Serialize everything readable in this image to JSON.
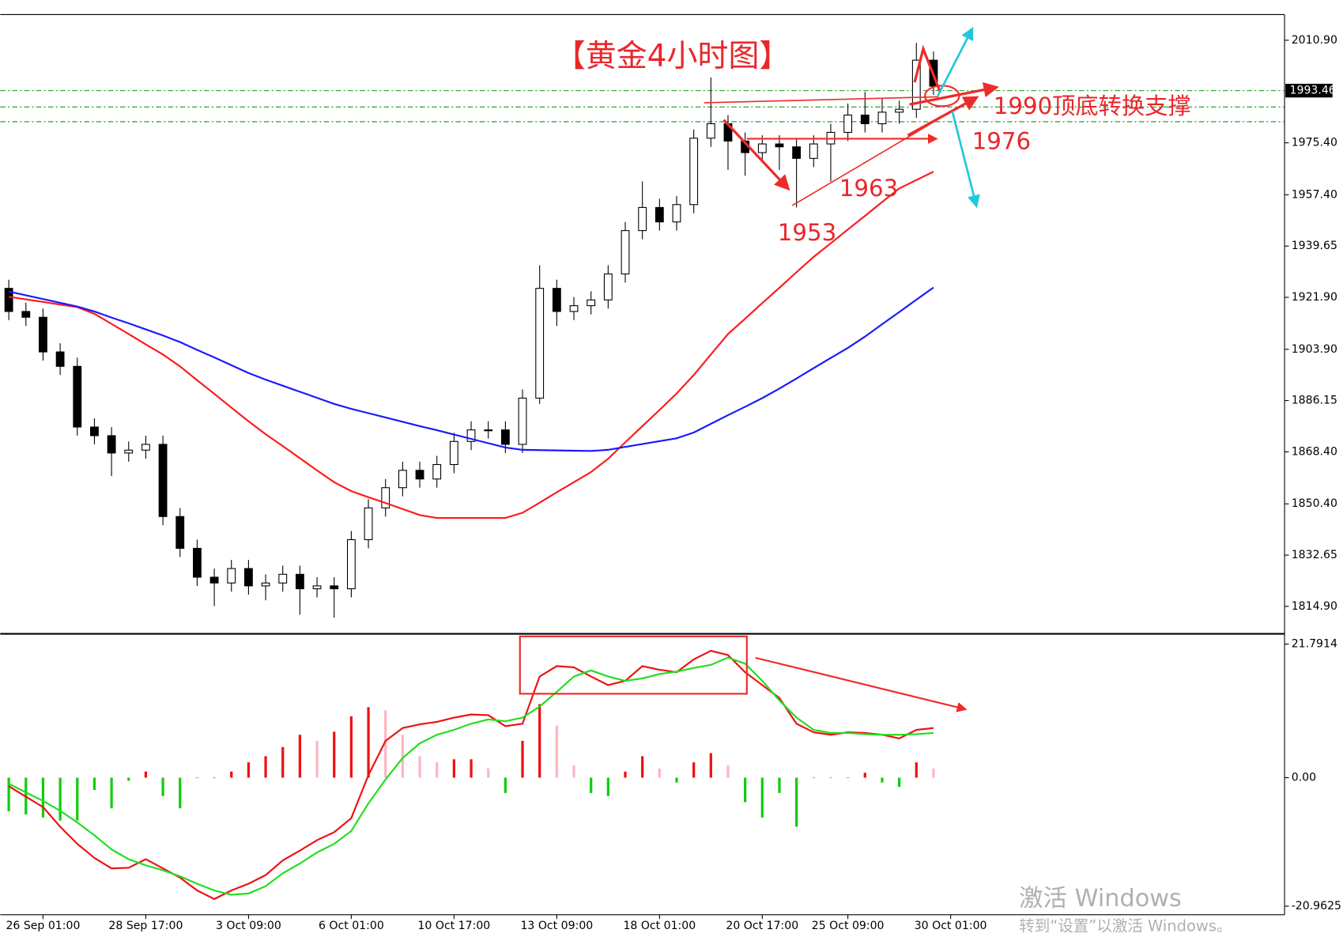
{
  "chart_data": [
    {
      "type": "candlestick",
      "title": "【黄金4小时图】",
      "annotations": [
        "1990顶底转换支撑",
        "1976",
        "1963",
        "1953"
      ],
      "categories": [
        null,
        null,
        "26 Sep 01:00",
        null,
        null,
        null,
        null,
        null,
        "28 Sep 17:00",
        null,
        null,
        null,
        null,
        null,
        "3 Oct 09:00",
        null,
        null,
        null,
        null,
        null,
        "6 Oct 01:00",
        null,
        null,
        null,
        null,
        null,
        "10 Oct 17:00",
        null,
        null,
        null,
        null,
        null,
        "13 Oct 09:00",
        null,
        null,
        null,
        null,
        null,
        "18 Oct 01:00",
        null,
        null,
        null,
        null,
        null,
        "20 Oct 17:00",
        null,
        null,
        null,
        null,
        "25 Oct 09:00",
        null,
        null,
        null,
        null,
        null,
        "30 Oct 01:00"
      ],
      "open": [
        1925,
        1917,
        1915,
        1903,
        1898,
        1877,
        1874,
        1868,
        1869,
        1871,
        1846,
        1835,
        1825,
        1823,
        1828,
        1822,
        1823,
        1826,
        1821,
        1822,
        1821,
        1838,
        1849,
        1856,
        1862,
        1859,
        1864,
        1872,
        1876,
        1876,
        1871,
        1887,
        1925,
        1917,
        1919,
        1921,
        1930,
        1945,
        1953,
        1948,
        1954,
        1977,
        1982,
        1976,
        1972,
        1975,
        1974,
        1970,
        1975,
        1979,
        1985,
        1982,
        1986,
        1987,
        2004,
        null
      ],
      "high": [
        1928,
        1920,
        1918,
        1906,
        1901,
        1880,
        1877,
        1872,
        1874,
        1874,
        1849,
        1838,
        1828,
        1831,
        1831,
        1826,
        1829,
        1829,
        1825,
        1825,
        1841,
        1852,
        1859,
        1865,
        1865,
        1867,
        1875,
        1879,
        1879,
        1879,
        1890,
        1933,
        1928,
        1922,
        1924,
        1933,
        1948,
        1962,
        1956,
        1957,
        1980,
        1998,
        1985,
        1979,
        1978,
        1978,
        1977,
        1978,
        1982,
        1989,
        1993,
        1991,
        1990,
        2010,
        2007,
        null
      ],
      "low": [
        1914,
        1912,
        1900,
        1895,
        1874,
        1871,
        1860,
        1865,
        1866,
        1843,
        1832,
        1822,
        1815,
        1820,
        1819,
        1817,
        1820,
        1812,
        1818,
        1811,
        1818,
        1835,
        1846,
        1853,
        1856,
        1856,
        1861,
        1869,
        1873,
        1868,
        1868,
        1885,
        1912,
        1914,
        1916,
        1918,
        1927,
        1942,
        1945,
        1945,
        1951,
        1974,
        1966,
        1964,
        1969,
        1966,
        1953,
        1967,
        1962,
        1976,
        1979,
        1979,
        1982,
        1984,
        1992,
        null
      ],
      "close": [
        1917,
        1915,
        1903,
        1898,
        1877,
        1874,
        1868,
        1869,
        1871,
        1846,
        1835,
        1825,
        1823,
        1828,
        1822,
        1823,
        1826,
        1821,
        1822,
        1821,
        1838,
        1849,
        1856,
        1862,
        1859,
        1864,
        1872,
        1876,
        1876,
        1871,
        1887,
        1925,
        1917,
        1919,
        1921,
        1930,
        1945,
        1953,
        1948,
        1954,
        1977,
        1982,
        1976,
        1972,
        1975,
        1974,
        1970,
        1975,
        1979,
        1985,
        1982,
        1986,
        1987,
        2004,
        1995,
        null
      ],
      "series": [
        {
          "color": "#ff1a1a",
          "values": [
            1922.1,
            1921.2,
            1920.3,
            1919.4,
            1918.5,
            1916.2,
            1912.7,
            1909.2,
            1905.6,
            1902.1,
            1898,
            1893.2,
            1888.5,
            1883.7,
            1879,
            1874.5,
            1870.4,
            1866.2,
            1862,
            1857.9,
            1854.8,
            1852.7,
            1850.7,
            1848.6,
            1846.5,
            1845.5,
            1845.5,
            1845.5,
            1845.5,
            1845.5,
            1847.3,
            1850.8,
            1854.4,
            1857.9,
            1861.4,
            1866,
            1871.7,
            1877.3,
            1882.9,
            1888.6,
            1895,
            1902.1,
            1909.2,
            1914.5,
            1919.9,
            1925.2,
            1930.6,
            1935.9,
            1940.6,
            1945.4,
            1950.1,
            1954.9,
            1959.6,
            1962.5,
            1965.4,
            null
          ]
        },
        {
          "color": "#1a1aff",
          "values": [
            1923.9,
            1922.6,
            1921.3,
            1920,
            1918.7,
            1917,
            1914.9,
            1912.9,
            1910.8,
            1908.7,
            1906.4,
            1903.7,
            1901.1,
            1898.4,
            1895.7,
            1893.4,
            1891.3,
            1889.2,
            1887.1,
            1885,
            1883.3,
            1881.8,
            1880.3,
            1878.8,
            1877.3,
            1875.9,
            1874.4,
            1872.9,
            1871.4,
            1869.9,
            1869.1,
            1869,
            1868.9,
            1868.8,
            1868.7,
            1869.1,
            1870.1,
            1871.1,
            1872.1,
            1873.1,
            1875.1,
            1878.1,
            1881.1,
            1884,
            1887,
            1890.3,
            1893.8,
            1897.4,
            1900.9,
            1904.4,
            1908.3,
            1912.6,
            1916.8,
            1921.1,
            1925.3,
            null
          ]
        }
      ],
      "up_color": "#ffffff",
      "down_color": "#000000",
      "level_color": "#119911",
      "current_price": {
        "value": 1993.46,
        "label": "1993.46"
      },
      "levels": [
        1987.8,
        1982.7
      ],
      "ylim": [
        1806,
        2019.5
      ],
      "yticks": [
        {
          "value": 2010.9,
          "label": "2010.90"
        },
        {
          "value": 1975.4,
          "label": "1975.40"
        },
        {
          "value": 1957.4,
          "label": "1957.40"
        },
        {
          "value": 1939.65,
          "label": "1939.65"
        },
        {
          "value": 1921.9,
          "label": "1921.90"
        },
        {
          "value": 1903.9,
          "label": "1903.90"
        },
        {
          "value": 1886.15,
          "label": "1886.15"
        },
        {
          "value": 1868.4,
          "label": "1868.40"
        },
        {
          "value": 1850.4,
          "label": "1850.40"
        },
        {
          "value": 1832.65,
          "label": "1832.65"
        },
        {
          "value": 1814.9,
          "label": "1814.90"
        }
      ],
      "grid": false
    },
    {
      "type": "macd",
      "histogram": [
        -5.5,
        -6,
        -6.5,
        -7,
        -7,
        -2,
        -5,
        -0.5,
        1,
        -3,
        -5,
        0,
        0,
        1,
        2.5,
        3.5,
        5,
        7,
        6,
        7.5,
        10,
        11.5,
        11,
        7,
        3.5,
        2.5,
        3,
        3,
        1.5,
        -2.5,
        6,
        12,
        8.5,
        2,
        -2.5,
        -3,
        1,
        3.5,
        1.5,
        -0.8,
        2.5,
        4,
        2,
        -4,
        -6.5,
        -2.5,
        -8,
        0,
        0,
        0,
        0.8,
        -0.8,
        -1.5,
        2.5,
        1.5,
        null
      ],
      "histogram_colors": {
        "rising": "#ee1111",
        "falling": "#ffb6c1",
        "negative": "#11cc11"
      },
      "series": [
        {
          "color": "#ee1111",
          "values": [
            -1.4,
            -3.1,
            -4.8,
            -8,
            -10.8,
            -13.1,
            -14.8,
            -14.7,
            -13.3,
            -14.8,
            -16.3,
            -18.4,
            -19.8,
            -18.4,
            -17.3,
            -15.9,
            -13.5,
            -11.9,
            -10.2,
            -8.9,
            -6.6,
            0.4,
            6,
            8.1,
            8.7,
            9.1,
            9.8,
            10.3,
            10.2,
            8.4,
            8.8,
            16.5,
            18.2,
            18,
            16.5,
            15.1,
            15.8,
            18.2,
            17.6,
            17.2,
            19.3,
            20.7,
            20,
            17.2,
            15.1,
            13,
            8.8,
            7.4,
            7,
            7.4,
            7.3,
            7,
            6.4,
            7.8,
            8.1,
            null
          ]
        },
        {
          "color": "#22dd22",
          "values": [
            -1,
            -2.4,
            -3.8,
            -5.4,
            -7.3,
            -9.4,
            -11.7,
            -13.3,
            -14.3,
            -15.1,
            -16.1,
            -17.3,
            -18.4,
            -19.1,
            -18.9,
            -17.7,
            -15.6,
            -14,
            -12.2,
            -10.8,
            -8.7,
            -4.2,
            -0.3,
            3.2,
            5.6,
            7,
            7.8,
            8.8,
            9.5,
            9.2,
            9.8,
            11.6,
            14,
            16.5,
            17.5,
            16.5,
            15.8,
            16.2,
            16.9,
            17.3,
            17.9,
            18.4,
            19.6,
            18.6,
            15.8,
            12.6,
            9.8,
            7.8,
            7.3,
            7.3,
            7.1,
            7,
            7,
            7.1,
            7.3,
            null
          ]
        }
      ],
      "ylim": [
        -22.36,
        23.19
      ],
      "yticks": [
        21.7914,
        {
          "value": 0,
          "label": "0.00"
        },
        -20.9625
      ]
    }
  ],
  "watermark": {
    "title": "激活 Windows",
    "subtitle": "转到“设置”以激活 Windows。"
  }
}
